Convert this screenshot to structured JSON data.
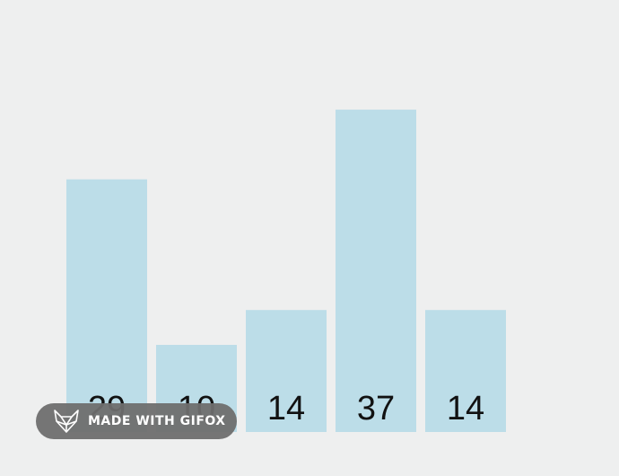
{
  "chart_data": {
    "type": "bar",
    "categories": [
      "",
      "",
      "",
      "",
      ""
    ],
    "values": [
      29,
      10,
      14,
      37,
      14
    ],
    "data_labels": [
      "29",
      "10",
      "14",
      "37",
      "14"
    ],
    "ylim": [
      0,
      40
    ],
    "grid": false,
    "title": "",
    "xlabel": "",
    "ylabel": "",
    "colors": {
      "bar": "#bcdde8",
      "background": "#eeefef",
      "label": "#111111"
    }
  },
  "watermark": {
    "text": "MADE WITH GIFOX",
    "icon": "fox-icon",
    "color": "#6e6e6e"
  }
}
